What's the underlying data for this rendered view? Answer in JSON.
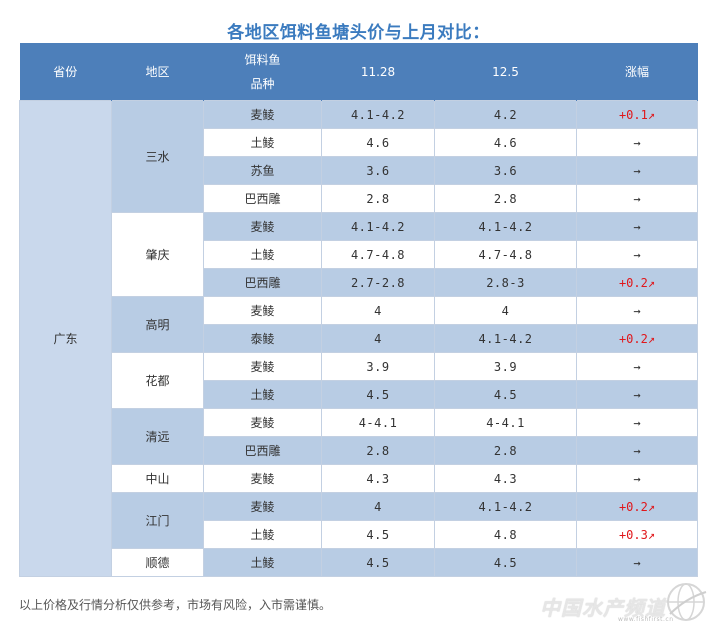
{
  "title": "各地区饵料鱼塘头价与上月对比：",
  "header": {
    "province": "省份",
    "region": "地区",
    "species_l1": "饵料鱼",
    "species_l2": "品种",
    "date1": "11.28",
    "date2": "12.5",
    "change": "涨幅"
  },
  "chart_data": {
    "type": "table",
    "columns": [
      "省份",
      "地区",
      "饵料鱼品种",
      "11.28",
      "12.5",
      "涨幅"
    ],
    "province": "广东",
    "regions": [
      {
        "name": "三水",
        "rows": [
          {
            "species": "麦鲮",
            "p1": "4.1-4.2",
            "p2": "4.2",
            "change": "+0.1↗",
            "up": true
          },
          {
            "species": "土鲮",
            "p1": "4.6",
            "p2": "4.6",
            "change": "→",
            "up": false
          },
          {
            "species": "苏鱼",
            "p1": "3.6",
            "p2": "3.6",
            "change": "→",
            "up": false
          },
          {
            "species": "巴西雕",
            "p1": "2.8",
            "p2": "2.8",
            "change": "→",
            "up": false
          }
        ]
      },
      {
        "name": "肇庆",
        "rows": [
          {
            "species": "麦鲮",
            "p1": "4.1-4.2",
            "p2": "4.1-4.2",
            "change": "→",
            "up": false
          },
          {
            "species": "土鲮",
            "p1": "4.7-4.8",
            "p2": "4.7-4.8",
            "change": "→",
            "up": false
          },
          {
            "species": "巴西雕",
            "p1": "2.7-2.8",
            "p2": "2.8-3",
            "change": "+0.2↗",
            "up": true
          }
        ]
      },
      {
        "name": "高明",
        "rows": [
          {
            "species": "麦鲮",
            "p1": "4",
            "p2": "4",
            "change": "→",
            "up": false
          },
          {
            "species": "泰鲮",
            "p1": "4",
            "p2": "4.1-4.2",
            "change": "+0.2↗",
            "up": true
          }
        ]
      },
      {
        "name": "花都",
        "rows": [
          {
            "species": "麦鲮",
            "p1": "3.9",
            "p2": "3.9",
            "change": "→",
            "up": false
          },
          {
            "species": "土鲮",
            "p1": "4.5",
            "p2": "4.5",
            "change": "→",
            "up": false
          }
        ]
      },
      {
        "name": "清远",
        "rows": [
          {
            "species": "麦鲮",
            "p1": "4-4.1",
            "p2": "4-4.1",
            "change": "→",
            "up": false
          },
          {
            "species": "巴西雕",
            "p1": "2.8",
            "p2": "2.8",
            "change": "→",
            "up": false
          }
        ]
      },
      {
        "name": "中山",
        "rows": [
          {
            "species": "麦鲮",
            "p1": "4.3",
            "p2": "4.3",
            "change": "→",
            "up": false
          }
        ]
      },
      {
        "name": "江门",
        "rows": [
          {
            "species": "麦鲮",
            "p1": "4",
            "p2": "4.1-4.2",
            "change": "+0.2↗",
            "up": true
          },
          {
            "species": "土鲮",
            "p1": "4.5",
            "p2": "4.8",
            "change": "+0.3↗",
            "up": true
          }
        ]
      },
      {
        "name": "顺德",
        "rows": [
          {
            "species": "土鲮",
            "p1": "4.5",
            "p2": "4.5",
            "change": "→",
            "up": false
          }
        ]
      }
    ]
  },
  "colors": {
    "header_bg": "#4d7fba",
    "band": "#b8cce4",
    "up": "#e0171b",
    "title": "#3b7bbf"
  },
  "footnote": "以上价格及行情分析仅供参考，市场有风险，入市需谨慎。",
  "logo": {
    "text": "中国水产频道",
    "sub": "www.fishfirst.cn"
  }
}
